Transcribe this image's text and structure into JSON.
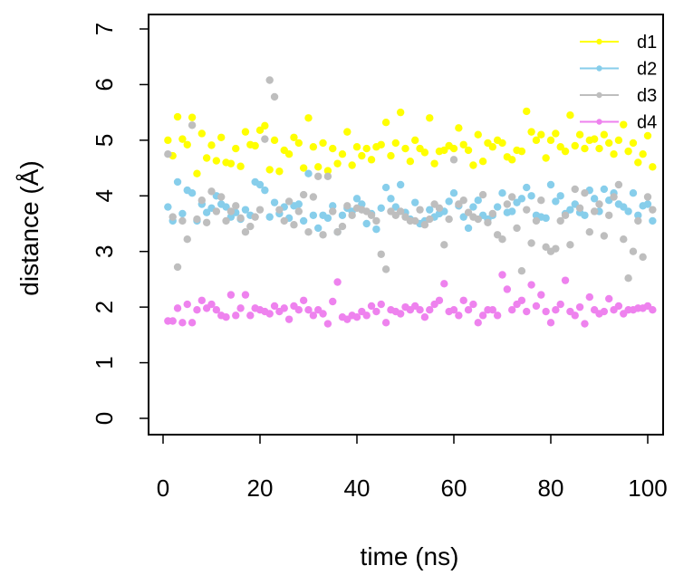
{
  "chart_data": {
    "type": "scatter",
    "title": "",
    "xlabel": "time (ns)",
    "ylabel": "distance (Å)",
    "xlim": [
      0,
      102
    ],
    "ylim": [
      0,
      7
    ],
    "xticks": [
      "0",
      "20",
      "40",
      "60",
      "80",
      "100"
    ],
    "yticks": [
      "0",
      "1",
      "2",
      "3",
      "4",
      "5",
      "6",
      "7"
    ],
    "grid": false,
    "legend_position": "top-right",
    "x": [
      1,
      2,
      3,
      4,
      5,
      6,
      7,
      8,
      9,
      10,
      11,
      12,
      13,
      14,
      15,
      16,
      17,
      18,
      19,
      20,
      21,
      22,
      23,
      24,
      25,
      26,
      27,
      28,
      29,
      30,
      31,
      32,
      33,
      34,
      35,
      36,
      37,
      38,
      39,
      40,
      41,
      42,
      43,
      44,
      45,
      46,
      47,
      48,
      49,
      50,
      51,
      52,
      53,
      54,
      55,
      56,
      57,
      58,
      59,
      60,
      61,
      62,
      63,
      64,
      65,
      66,
      67,
      68,
      69,
      70,
      71,
      72,
      73,
      74,
      75,
      76,
      77,
      78,
      79,
      80,
      81,
      82,
      83,
      84,
      85,
      86,
      87,
      88,
      89,
      90,
      91,
      92,
      93,
      94,
      95,
      96,
      97,
      98,
      99,
      100,
      101
    ],
    "series": [
      {
        "name": "d1",
        "color": "#ffff00",
        "values": [
          5.0,
          4.72,
          5.42,
          5.02,
          4.92,
          5.41,
          4.4,
          5.12,
          4.68,
          4.91,
          4.63,
          5.05,
          4.6,
          4.58,
          4.85,
          4.53,
          5.15,
          4.92,
          4.9,
          5.18,
          5.26,
          4.47,
          5.0,
          4.44,
          4.82,
          4.75,
          5.05,
          4.95,
          4.5,
          5.4,
          4.88,
          4.52,
          4.95,
          4.45,
          4.85,
          4.58,
          4.75,
          5.15,
          4.55,
          4.88,
          4.72,
          4.85,
          4.65,
          4.88,
          4.92,
          5.32,
          4.72,
          4.95,
          5.5,
          4.85,
          4.62,
          5.0,
          4.85,
          4.78,
          5.4,
          4.58,
          4.8,
          4.82,
          4.9,
          4.85,
          5.22,
          4.92,
          4.82,
          4.55,
          5.1,
          4.62,
          4.95,
          4.88,
          5.0,
          4.95,
          4.7,
          4.65,
          4.82,
          4.8,
          5.52,
          5.15,
          5.0,
          5.1,
          4.68,
          5.0,
          5.12,
          4.88,
          4.8,
          5.45,
          4.9,
          5.1,
          4.85,
          5.0,
          5.02,
          4.85,
          5.1,
          4.95,
          4.75,
          5.0,
          5.28,
          4.8,
          4.95,
          4.6,
          4.75,
          5.08,
          4.52
        ]
      },
      {
        "name": "d2",
        "color": "#87ceeb",
        "values": [
          3.8,
          3.55,
          4.25,
          3.68,
          4.1,
          4.05,
          3.55,
          3.85,
          3.7,
          3.78,
          4.0,
          3.85,
          3.8,
          3.62,
          3.7,
          3.58,
          3.75,
          3.65,
          4.25,
          4.2,
          4.1,
          3.62,
          3.88,
          3.68,
          3.8,
          3.6,
          3.82,
          3.85,
          3.55,
          4.4,
          3.65,
          3.42,
          3.65,
          3.6,
          3.82,
          3.35,
          3.65,
          3.78,
          3.72,
          3.95,
          3.85,
          3.5,
          3.68,
          3.4,
          3.78,
          4.15,
          3.95,
          3.8,
          4.2,
          3.7,
          3.58,
          3.88,
          3.5,
          3.55,
          3.75,
          3.62,
          3.68,
          3.72,
          3.9,
          4.05,
          3.82,
          3.62,
          3.42,
          3.8,
          3.92,
          3.65,
          3.58,
          3.65,
          3.8,
          4.05,
          3.7,
          3.72,
          3.88,
          3.95,
          4.15,
          4.0,
          3.65,
          3.62,
          3.6,
          4.2,
          3.9,
          4.0,
          3.68,
          3.75,
          3.85,
          3.7,
          3.65,
          4.1,
          3.95,
          3.72,
          4.12,
          3.92,
          4.05,
          3.85,
          3.8,
          3.72,
          4.05,
          3.65,
          3.82,
          3.85,
          3.55
        ]
      },
      {
        "name": "d3",
        "color": "#bebebe",
        "values": [
          4.75,
          3.62,
          2.72,
          3.55,
          3.22,
          5.27,
          3.58,
          3.92,
          3.52,
          4.08,
          3.72,
          3.98,
          3.55,
          3.72,
          3.82,
          3.6,
          3.35,
          3.45,
          3.62,
          3.75,
          5.02,
          6.08,
          5.78,
          3.75,
          3.55,
          3.9,
          3.48,
          3.72,
          4.02,
          3.35,
          3.98,
          4.35,
          3.3,
          4.35,
          3.72,
          3.35,
          3.45,
          3.82,
          3.65,
          3.78,
          3.75,
          3.72,
          3.65,
          3.55,
          2.95,
          2.68,
          3.72,
          3.65,
          3.72,
          3.62,
          3.55,
          3.55,
          3.75,
          3.48,
          3.58,
          3.85,
          3.78,
          3.12,
          3.58,
          4.65,
          3.85,
          3.92,
          3.7,
          3.62,
          3.58,
          4.02,
          3.52,
          3.68,
          3.3,
          3.22,
          3.85,
          3.98,
          3.42,
          2.65,
          3.75,
          3.15,
          3.55,
          3.92,
          3.08,
          3.0,
          3.05,
          3.55,
          3.65,
          3.12,
          4.12,
          3.78,
          4.05,
          3.35,
          3.72,
          3.85,
          3.28,
          3.65,
          3.98,
          4.2,
          3.22,
          2.52,
          3.0,
          3.55,
          2.9,
          3.98,
          3.75
        ]
      },
      {
        "name": "d4",
        "color": "#ee82ee",
        "values": [
          1.75,
          1.75,
          1.98,
          1.72,
          2.05,
          1.72,
          1.95,
          2.12,
          1.98,
          2.05,
          1.95,
          1.85,
          1.82,
          2.22,
          1.85,
          1.98,
          2.22,
          1.85,
          1.98,
          1.95,
          1.92,
          1.88,
          2.02,
          1.92,
          1.98,
          1.78,
          2.02,
          1.95,
          2.12,
          1.95,
          1.85,
          1.95,
          1.88,
          1.7,
          2.1,
          2.45,
          1.82,
          1.78,
          1.85,
          1.82,
          1.92,
          1.85,
          2.02,
          1.92,
          2.05,
          1.72,
          1.95,
          1.92,
          1.88,
          2.0,
          1.95,
          2.02,
          1.95,
          1.82,
          1.95,
          2.05,
          2.12,
          2.42,
          1.92,
          1.95,
          1.85,
          2.12,
          1.95,
          2.05,
          1.72,
          1.85,
          1.95,
          1.95,
          1.85,
          2.58,
          2.32,
          1.95,
          2.05,
          2.12,
          1.92,
          2.4,
          2.02,
          2.22,
          1.92,
          1.72,
          1.95,
          2.05,
          2.48,
          1.92,
          1.85,
          2.0,
          1.7,
          2.18,
          1.95,
          1.88,
          1.92,
          2.15,
          1.95,
          2.02,
          1.88,
          1.95,
          1.95,
          1.98,
          1.98,
          2.02,
          1.95
        ]
      }
    ]
  }
}
